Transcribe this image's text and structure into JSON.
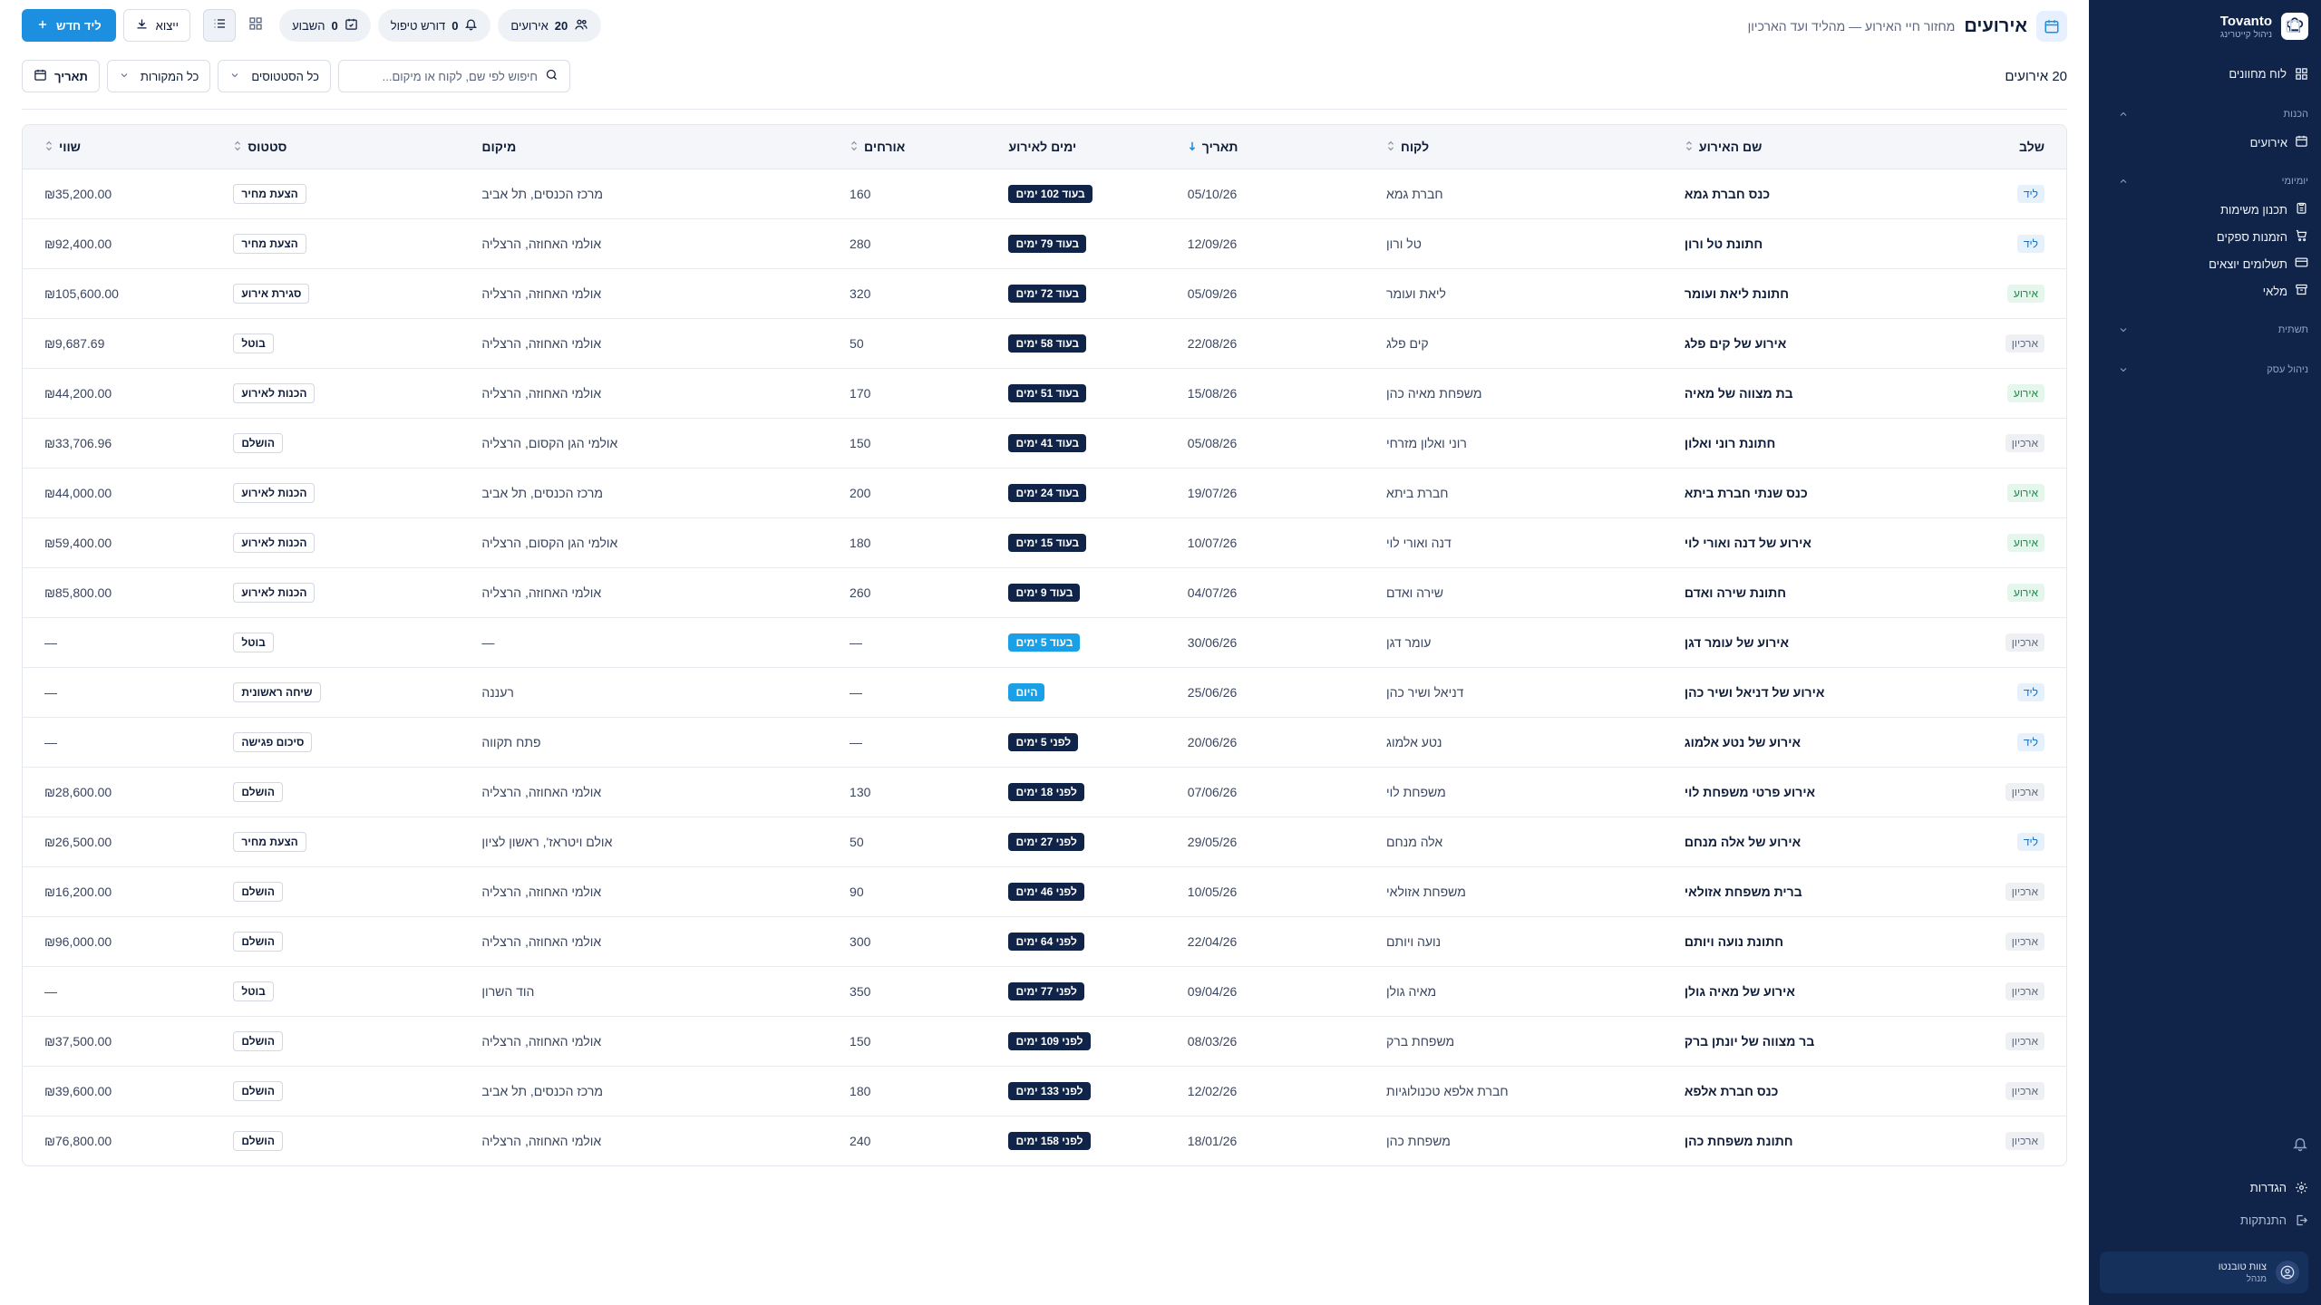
{
  "sidebar": {
    "brand_name": "Tovanto",
    "brand_sub": "ניהול קייטרינג",
    "dashboard": "לוח מחוונים",
    "groups": [
      {
        "label": "הכנות",
        "items": [
          "אירועים"
        ]
      },
      {
        "label": "יומיומי",
        "items": [
          "תכנון משימות",
          "הזמנות ספקים",
          "תשלומים יוצאים",
          "מלאי"
        ]
      },
      {
        "label": "תשתית",
        "items": []
      },
      {
        "label": "ניהול עסק",
        "items": []
      }
    ],
    "settings": "הגדרות",
    "logout": "התנתקות",
    "user_name": "צוות טובנטו",
    "user_role": "מנהל"
  },
  "header": {
    "title": "אירועים",
    "subtitle": "מחזור חיי האירוע — מהליד ועד הארכיון",
    "chip_events_count": "20",
    "chip_events_label": "אירועים",
    "chip_pending_count": "0",
    "chip_pending_label": "דורש טיפול",
    "chip_week_count": "0",
    "chip_week_label": "השבוע",
    "export_label": "ייצוא",
    "new_lead_label": "ליד חדש"
  },
  "toolbar": {
    "count_label": "20 אירועים",
    "search_placeholder": "חיפוש לפי שם, לקוח או מיקום...",
    "status_filter": "כל הסטטוסים",
    "source_filter": "כל המקורות",
    "date_button": "תאריך"
  },
  "table": {
    "headers": {
      "stage": "שלב",
      "name": "שם האירוע",
      "client": "לקוח",
      "date": "תאריך",
      "days": "ימים לאירוע",
      "guests": "אורחים",
      "location": "מיקום",
      "status": "סטטוס",
      "value": "שווי"
    },
    "rows": [
      {
        "stage": "ליד",
        "stage_type": "lead",
        "name": "כנס חברת גמא",
        "client": "חברת גמא",
        "date": "05/10/26",
        "days": "בעוד 102 ימים",
        "days_type": "future",
        "guests": "160",
        "location": "מרכז הכנסים, תל אביב",
        "status": "הצעת מחיר",
        "value": "₪35,200.00"
      },
      {
        "stage": "ליד",
        "stage_type": "lead",
        "name": "חתונת טל ורון",
        "client": "טל ורון",
        "date": "12/09/26",
        "days": "בעוד 79 ימים",
        "days_type": "future",
        "guests": "280",
        "location": "אולמי האחוזה, הרצליה",
        "status": "הצעת מחיר",
        "value": "₪92,400.00"
      },
      {
        "stage": "אירוע",
        "stage_type": "event",
        "name": "חתונת ליאת ועומר",
        "client": "ליאת ועומר",
        "date": "05/09/26",
        "days": "בעוד 72 ימים",
        "days_type": "future",
        "guests": "320",
        "location": "אולמי האחוזה, הרצליה",
        "status": "סגירת אירוע",
        "value": "₪105,600.00"
      },
      {
        "stage": "ארכיון",
        "stage_type": "archive",
        "name": "אירוע של קים פלג",
        "client": "קים פלג",
        "date": "22/08/26",
        "days": "בעוד 58 ימים",
        "days_type": "future",
        "guests": "50",
        "location": "אולמי האחוזה, הרצליה",
        "status": "בוטל",
        "value": "₪9,687.69"
      },
      {
        "stage": "אירוע",
        "stage_type": "event",
        "name": "בת מצווה של מאיה",
        "client": "משפחת מאיה כהן",
        "date": "15/08/26",
        "days": "בעוד 51 ימים",
        "days_type": "future",
        "guests": "170",
        "location": "אולמי האחוזה, הרצליה",
        "status": "הכנות לאירוע",
        "value": "₪44,200.00"
      },
      {
        "stage": "ארכיון",
        "stage_type": "archive",
        "name": "חתונת רוני ואלון",
        "client": "רוני ואלון מזרחי",
        "date": "05/08/26",
        "days": "בעוד 41 ימים",
        "days_type": "future",
        "guests": "150",
        "location": "אולמי הגן הקסום, הרצליה",
        "status": "הושלם",
        "value": "₪33,706.96"
      },
      {
        "stage": "אירוע",
        "stage_type": "event",
        "name": "כנס שנתי חברת ביתא",
        "client": "חברת ביתא",
        "date": "19/07/26",
        "days": "בעוד 24 ימים",
        "days_type": "future",
        "guests": "200",
        "location": "מרכז הכנסים, תל אביב",
        "status": "הכנות לאירוע",
        "value": "₪44,000.00"
      },
      {
        "stage": "אירוע",
        "stage_type": "event",
        "name": "אירוע של דנה ואורי לוי",
        "client": "דנה ואורי לוי",
        "date": "10/07/26",
        "days": "בעוד 15 ימים",
        "days_type": "future",
        "guests": "180",
        "location": "אולמי הגן הקסום, הרצליה",
        "status": "הכנות לאירוע",
        "value": "₪59,400.00"
      },
      {
        "stage": "אירוע",
        "stage_type": "event",
        "name": "חתונת שירה ואדם",
        "client": "שירה ואדם",
        "date": "04/07/26",
        "days": "בעוד 9 ימים",
        "days_type": "future",
        "guests": "260",
        "location": "אולמי האחוזה, הרצליה",
        "status": "הכנות לאירוע",
        "value": "₪85,800.00"
      },
      {
        "stage": "ארכיון",
        "stage_type": "archive",
        "name": "אירוע של עומר דגן",
        "client": "עומר דגן",
        "date": "30/06/26",
        "days": "בעוד 5 ימים",
        "days_type": "soon",
        "guests": "—",
        "location": "—",
        "status": "בוטל",
        "value": "—"
      },
      {
        "stage": "ליד",
        "stage_type": "lead",
        "name": "אירוע של דניאל ושיר כהן",
        "client": "דניאל ושיר כהן",
        "date": "25/06/26",
        "days": "היום",
        "days_type": "today",
        "guests": "—",
        "location": "רעננה",
        "status": "שיחה ראשונית",
        "value": "—"
      },
      {
        "stage": "ליד",
        "stage_type": "lead",
        "name": "אירוע של נטע אלמוג",
        "client": "נטע אלמוג",
        "date": "20/06/26",
        "days": "לפני 5 ימים",
        "days_type": "past",
        "guests": "—",
        "location": "פתח תקווה",
        "status": "סיכום פגישה",
        "value": "—"
      },
      {
        "stage": "ארכיון",
        "stage_type": "archive",
        "name": "אירוע פרטי משפחת לוי",
        "client": "משפחת לוי",
        "date": "07/06/26",
        "days": "לפני 18 ימים",
        "days_type": "past",
        "guests": "130",
        "location": "אולמי האחוזה, הרצליה",
        "status": "הושלם",
        "value": "₪28,600.00"
      },
      {
        "stage": "ליד",
        "stage_type": "lead",
        "name": "אירוע של אלה מנחם",
        "client": "אלה מנחם",
        "date": "29/05/26",
        "days": "לפני 27 ימים",
        "days_type": "past",
        "guests": "50",
        "location": "אולם ויטראז', ראשון לציון",
        "status": "הצעת מחיר",
        "value": "₪26,500.00"
      },
      {
        "stage": "ארכיון",
        "stage_type": "archive",
        "name": "ברית משפחת אזולאי",
        "client": "משפחת אזולאי",
        "date": "10/05/26",
        "days": "לפני 46 ימים",
        "days_type": "past",
        "guests": "90",
        "location": "אולמי האחוזה, הרצליה",
        "status": "הושלם",
        "value": "₪16,200.00"
      },
      {
        "stage": "ארכיון",
        "stage_type": "archive",
        "name": "חתונת נועה ויותם",
        "client": "נועה ויותם",
        "date": "22/04/26",
        "days": "לפני 64 ימים",
        "days_type": "past",
        "guests": "300",
        "location": "אולמי האחוזה, הרצליה",
        "status": "הושלם",
        "value": "₪96,000.00"
      },
      {
        "stage": "ארכיון",
        "stage_type": "archive",
        "name": "אירוע של מאיה גולן",
        "client": "מאיה גולן",
        "date": "09/04/26",
        "days": "לפני 77 ימים",
        "days_type": "past",
        "guests": "350",
        "location": "הוד השרון",
        "status": "בוטל",
        "value": "—"
      },
      {
        "stage": "ארכיון",
        "stage_type": "archive",
        "name": "בר מצווה של יונתן ברק",
        "client": "משפחת ברק",
        "date": "08/03/26",
        "days": "לפני 109 ימים",
        "days_type": "past",
        "guests": "150",
        "location": "אולמי האחוזה, הרצליה",
        "status": "הושלם",
        "value": "₪37,500.00"
      },
      {
        "stage": "ארכיון",
        "stage_type": "archive",
        "name": "כנס חברת אלפא",
        "client": "חברת אלפא טכנולוגיות",
        "date": "12/02/26",
        "days": "לפני 133 ימים",
        "days_type": "past",
        "guests": "180",
        "location": "מרכז הכנסים, תל אביב",
        "status": "הושלם",
        "value": "₪39,600.00"
      },
      {
        "stage": "ארכיון",
        "stage_type": "archive",
        "name": "חתונת משפחת כהן",
        "client": "משפחת כהן",
        "date": "18/01/26",
        "days": "לפני 158 ימים",
        "days_type": "past",
        "guests": "240",
        "location": "אולמי האחוזה, הרצליה",
        "status": "הושלם",
        "value": "₪76,800.00"
      }
    ]
  },
  "colors": {
    "sidebar_bg": "#10244a",
    "accent": "#1d8fe1",
    "days_badge": "#10244a",
    "today_badge": "#1aa0e6"
  }
}
